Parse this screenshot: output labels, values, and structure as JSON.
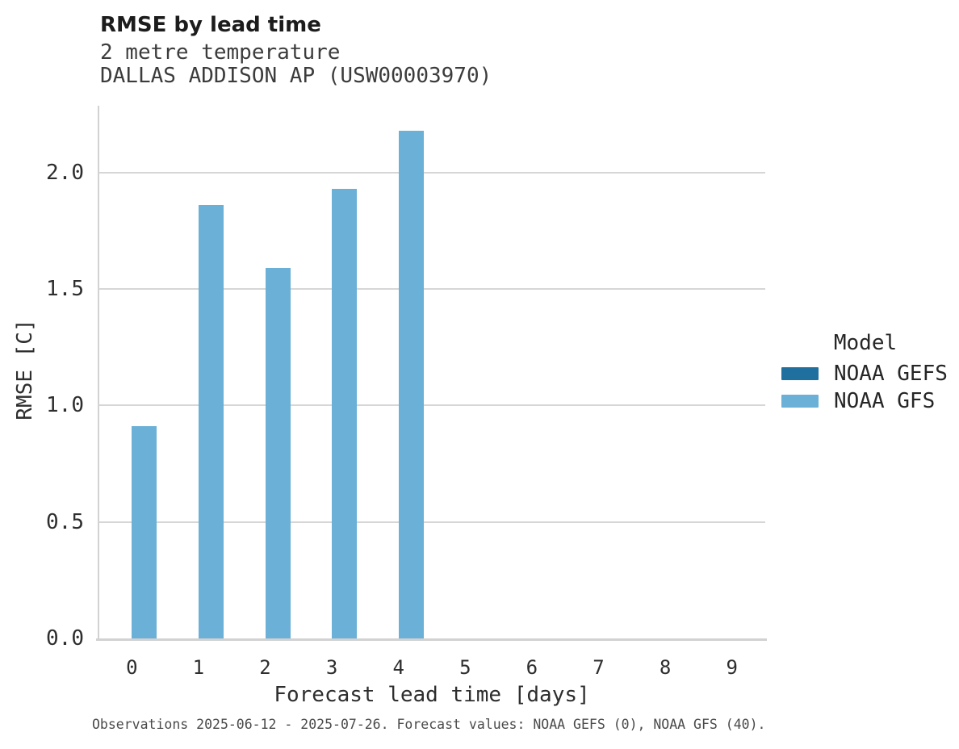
{
  "header": {
    "title": "RMSE by lead time",
    "subtitle_line1": "2 metre temperature",
    "subtitle_line2": "DALLAS ADDISON AP (USW00003970)"
  },
  "chart_data": {
    "type": "bar",
    "title": "RMSE by lead time",
    "subtitle": [
      "2 metre temperature",
      "DALLAS ADDISON AP (USW00003970)"
    ],
    "xlabel": "Forecast lead time [days]",
    "ylabel": "RMSE [C]",
    "categories": [
      "0",
      "1",
      "2",
      "3",
      "4",
      "5",
      "6",
      "7",
      "8",
      "9"
    ],
    "series": [
      {
        "name": "NOAA GEFS",
        "color": "#1f6f9f",
        "values": [
          null,
          null,
          null,
          null,
          null,
          null,
          null,
          null,
          null,
          null
        ]
      },
      {
        "name": "NOAA GFS",
        "color": "#6bb0d6",
        "values": [
          0.91,
          1.86,
          1.59,
          1.93,
          2.18,
          null,
          null,
          null,
          null,
          null
        ]
      }
    ],
    "ylim": [
      0,
      2.28
    ],
    "yticks": [
      {
        "value": 0.0,
        "label": "0.0"
      },
      {
        "value": 0.5,
        "label": "0.5"
      },
      {
        "value": 1.0,
        "label": "1.0"
      },
      {
        "value": 1.5,
        "label": "1.5"
      },
      {
        "value": 2.0,
        "label": "2.0"
      }
    ],
    "grid": true,
    "legend": {
      "title": "Model",
      "position": "right"
    }
  },
  "footer": {
    "caption": "Observations 2025-06-12 - 2025-07-26. Forecast values: NOAA GEFS (0), NOAA GFS (40)."
  }
}
